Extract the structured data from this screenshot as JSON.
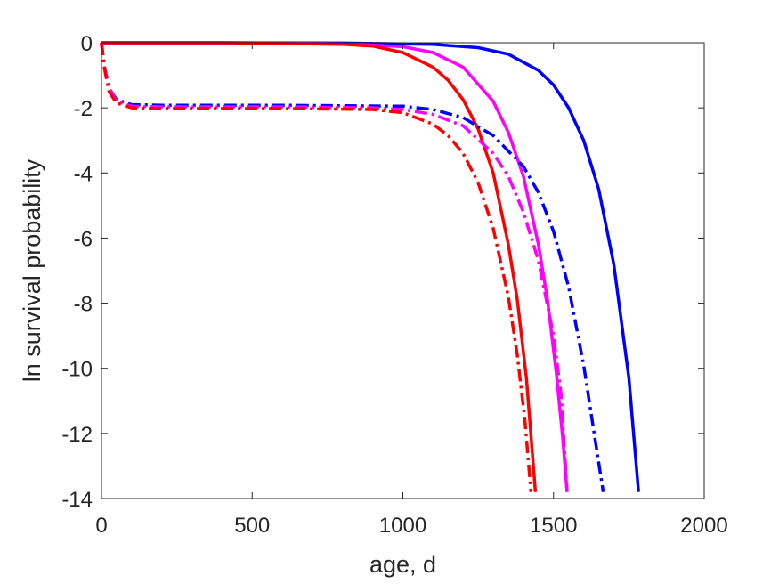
{
  "chart_data": {
    "type": "line",
    "title": "",
    "xlabel": "age, d",
    "ylabel": "ln survival probability",
    "xlim": [
      0,
      2000
    ],
    "ylim": [
      -14,
      0
    ],
    "xticks": [
      0,
      500,
      1000,
      1500,
      2000
    ],
    "yticks": [
      0,
      -2,
      -4,
      -6,
      -8,
      -10,
      -12,
      -14
    ],
    "grid": false,
    "legend": "none",
    "series": [
      {
        "color": "#0000ff",
        "style": "solid",
        "x": [
          0,
          400,
          800,
          1100,
          1250,
          1350,
          1450,
          1500,
          1550,
          1600,
          1650,
          1700,
          1750,
          1782
        ],
        "y": [
          0,
          0,
          -0.01,
          -0.05,
          -0.15,
          -0.35,
          -0.85,
          -1.3,
          -2.0,
          -3.0,
          -4.5,
          -6.8,
          -10.3,
          -13.8
        ]
      },
      {
        "color": "#ff00ff",
        "style": "solid",
        "x": [
          0,
          400,
          800,
          1000,
          1100,
          1200,
          1300,
          1350,
          1400,
          1450,
          1480,
          1510,
          1530,
          1545
        ],
        "y": [
          0,
          0,
          -0.03,
          -0.12,
          -0.3,
          -0.75,
          -1.8,
          -2.75,
          -4.1,
          -6.2,
          -7.9,
          -10.2,
          -12.1,
          -13.8
        ]
      },
      {
        "color": "#ff0000",
        "style": "solid",
        "x": [
          0,
          400,
          800,
          900,
          1000,
          1100,
          1150,
          1200,
          1250,
          1300,
          1350,
          1380,
          1410,
          1440
        ],
        "y": [
          0,
          0,
          -0.05,
          -0.1,
          -0.3,
          -0.75,
          -1.15,
          -1.75,
          -2.65,
          -4.0,
          -6.2,
          -7.9,
          -10.3,
          -13.8
        ]
      },
      {
        "color": "#0000ff",
        "style": "dashdot",
        "x": [
          0,
          10,
          25,
          50,
          100,
          200,
          600,
          1000,
          1100,
          1200,
          1300,
          1400,
          1450,
          1500,
          1550,
          1600,
          1640,
          1665
        ],
        "y": [
          0,
          -0.75,
          -1.4,
          -1.75,
          -1.9,
          -1.92,
          -1.92,
          -1.95,
          -2.05,
          -2.3,
          -2.85,
          -3.8,
          -4.6,
          -5.8,
          -7.5,
          -9.9,
          -12.3,
          -13.8
        ]
      },
      {
        "color": "#ff00ff",
        "style": "dashdot",
        "x": [
          0,
          10,
          25,
          50,
          100,
          200,
          600,
          900,
          1000,
          1100,
          1200,
          1300,
          1350,
          1400,
          1450,
          1500,
          1525,
          1545
        ],
        "y": [
          0,
          -0.75,
          -1.4,
          -1.8,
          -1.95,
          -1.97,
          -1.97,
          -2.0,
          -2.05,
          -2.2,
          -2.55,
          -3.4,
          -4.1,
          -5.2,
          -6.7,
          -9.0,
          -10.8,
          -13.8
        ]
      },
      {
        "color": "#ff0000",
        "style": "dashdot",
        "x": [
          0,
          10,
          25,
          50,
          100,
          200,
          600,
          900,
          1000,
          1100,
          1150,
          1200,
          1250,
          1300,
          1350,
          1380,
          1405,
          1425
        ],
        "y": [
          0,
          -0.8,
          -1.5,
          -1.85,
          -2.0,
          -2.02,
          -2.02,
          -2.05,
          -2.15,
          -2.5,
          -2.85,
          -3.4,
          -4.3,
          -5.7,
          -7.8,
          -9.6,
          -11.6,
          -13.8
        ]
      }
    ]
  }
}
